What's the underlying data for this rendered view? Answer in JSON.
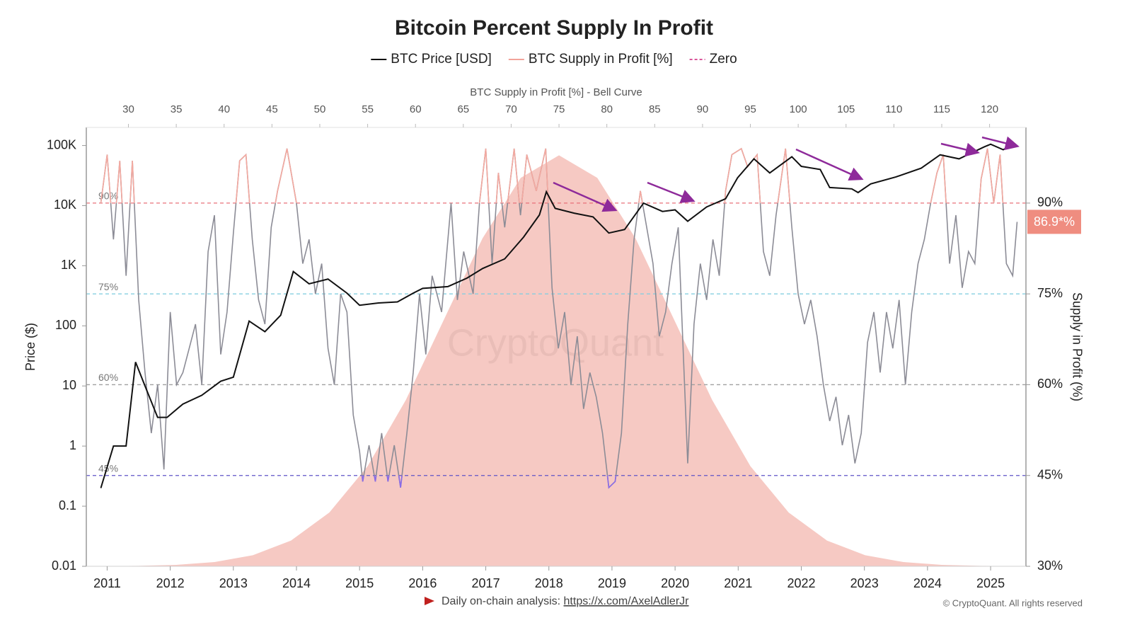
{
  "chart_data": {
    "type": "line",
    "title": "Bitcoin Percent Supply In Profit",
    "y_label": "Price ($)",
    "y2_label": "Supply in Profit (%)",
    "log_scale": true,
    "xlim": [
      2010.67,
      2025.56
    ],
    "xticks": [
      2011,
      2012,
      2013,
      2014,
      2015,
      2016,
      2017,
      2018,
      2019,
      2020,
      2021,
      2022,
      2023,
      2024,
      2025
    ],
    "ylim": [
      0.01,
      200000
    ],
    "yticks": [
      0.01,
      0.1,
      1,
      10,
      100,
      {
        "value": 1000,
        "label": "1K"
      },
      {
        "value": 10000,
        "label": "10K"
      },
      {
        "value": 100000,
        "label": "100K"
      }
    ],
    "y2lim": [
      30,
      102.5
    ],
    "y2ticks": [
      {
        "value": 30,
        "label": "30%"
      },
      {
        "value": 45,
        "label": "45%"
      },
      {
        "value": 60,
        "label": "60%"
      },
      {
        "value": 75,
        "label": "75%"
      },
      {
        "value": 90,
        "label": "90%"
      }
    ],
    "reference_lines": [
      {
        "value": 90,
        "label": "90%",
        "color": "#e8707a",
        "tint": "#f4a9a0",
        "tint_side": "above"
      },
      {
        "value": 75,
        "label": "75%",
        "color": "#86cfe0"
      },
      {
        "value": 60,
        "label": "60%",
        "color": "#a0a0a0"
      },
      {
        "value": 45,
        "label": "45%",
        "color": "#5f54c8",
        "tint": "#8a6be8",
        "tint_side": "below"
      }
    ],
    "bell_curve": {
      "axis_label": "BTC Supply in Profit [%] - Bell Curve",
      "xlim": [
        25.6,
        123.8
      ],
      "xticks": [
        30,
        35,
        40,
        45,
        50,
        55,
        60,
        65,
        70,
        75,
        80,
        85,
        90,
        95,
        100,
        105,
        110,
        115,
        120
      ],
      "color": "#f6c9c3",
      "x": [
        27,
        31,
        35,
        39,
        43,
        47,
        51,
        55,
        59,
        63,
        67,
        71,
        75,
        79,
        83,
        87,
        91,
        95,
        99,
        103,
        107,
        111,
        115,
        119,
        123
      ],
      "values": [
        30.02,
        30.07,
        30.24,
        30.7,
        31.83,
        34.26,
        38.88,
        46.54,
        57.5,
        70.84,
        84.16,
        94.17,
        97.9,
        94.17,
        84.16,
        70.84,
        57.5,
        46.54,
        38.88,
        34.26,
        31.83,
        30.7,
        30.24,
        30.07,
        30.02
      ]
    },
    "series": [
      {
        "name": "BTC Price [USD]",
        "color": "#111111",
        "axis": "y",
        "x": [
          2010.9,
          2011.1,
          2011.3,
          2011.45,
          2011.6,
          2011.8,
          2011.95,
          2012.2,
          2012.5,
          2012.8,
          2013.0,
          2013.25,
          2013.5,
          2013.75,
          2013.95,
          2014.2,
          2014.5,
          2014.8,
          2015.0,
          2015.3,
          2015.6,
          2015.85,
          2016.0,
          2016.4,
          2016.7,
          2016.95,
          2017.3,
          2017.6,
          2017.85,
          2017.96,
          2018.1,
          2018.4,
          2018.7,
          2018.95,
          2019.2,
          2019.5,
          2019.8,
          2020.0,
          2020.2,
          2020.5,
          2020.8,
          2020.99,
          2021.25,
          2021.5,
          2021.85,
          2022.0,
          2022.3,
          2022.45,
          2022.8,
          2022.9,
          2023.1,
          2023.5,
          2023.9,
          2024.2,
          2024.5,
          2024.9,
          2025.0,
          2025.2,
          2025.35
        ],
        "values": [
          0.2,
          1,
          1,
          25,
          10,
          3,
          3,
          5,
          7,
          12,
          14,
          120,
          80,
          150,
          800,
          500,
          600,
          350,
          220,
          240,
          250,
          350,
          420,
          450,
          620,
          900,
          1300,
          3000,
          7000,
          17000,
          9000,
          7500,
          6500,
          3500,
          4000,
          11000,
          8000,
          8500,
          5500,
          9500,
          13000,
          29000,
          60000,
          35000,
          65000,
          45000,
          40000,
          20000,
          19000,
          16500,
          23000,
          30000,
          42000,
          70000,
          60000,
          95000,
          105000,
          85000,
          105000
        ]
      },
      {
        "name": "BTC Supply in Profit [%]",
        "color": "#f2a39a",
        "line_color": "#8c8c96",
        "axis": "y2",
        "badge": {
          "label": "86.9*%",
          "color": "#ef8d80"
        },
        "x": [
          2010.9,
          2011.0,
          2011.1,
          2011.2,
          2011.3,
          2011.4,
          2011.5,
          2011.6,
          2011.7,
          2011.8,
          2011.9,
          2012.0,
          2012.1,
          2012.2,
          2012.3,
          2012.4,
          2012.5,
          2012.6,
          2012.7,
          2012.8,
          2012.9,
          2013.0,
          2013.1,
          2013.2,
          2013.3,
          2013.4,
          2013.5,
          2013.6,
          2013.7,
          2013.85,
          2014.0,
          2014.1,
          2014.2,
          2014.3,
          2014.4,
          2014.5,
          2014.6,
          2014.7,
          2014.8,
          2014.9,
          2015.0,
          2015.05,
          2015.15,
          2015.25,
          2015.35,
          2015.45,
          2015.55,
          2015.65,
          2015.75,
          2015.85,
          2015.95,
          2016.05,
          2016.15,
          2016.3,
          2016.45,
          2016.55,
          2016.65,
          2016.8,
          2016.9,
          2017.0,
          2017.1,
          2017.2,
          2017.3,
          2017.45,
          2017.55,
          2017.65,
          2017.8,
          2017.95,
          2018.05,
          2018.15,
          2018.25,
          2018.35,
          2018.45,
          2018.55,
          2018.65,
          2018.75,
          2018.85,
          2018.95,
          2019.05,
          2019.15,
          2019.25,
          2019.35,
          2019.45,
          2019.55,
          2019.65,
          2019.75,
          2019.85,
          2019.95,
          2020.05,
          2020.15,
          2020.2,
          2020.3,
          2020.4,
          2020.5,
          2020.6,
          2020.7,
          2020.8,
          2020.9,
          2021.05,
          2021.15,
          2021.3,
          2021.4,
          2021.5,
          2021.6,
          2021.75,
          2021.85,
          2021.95,
          2022.05,
          2022.15,
          2022.25,
          2022.35,
          2022.45,
          2022.55,
          2022.65,
          2022.75,
          2022.85,
          2022.95,
          2023.05,
          2023.15,
          2023.25,
          2023.35,
          2023.45,
          2023.55,
          2023.65,
          2023.75,
          2023.85,
          2023.95,
          2024.05,
          2024.15,
          2024.25,
          2024.35,
          2024.45,
          2024.55,
          2024.65,
          2024.75,
          2024.85,
          2024.95,
          2025.05,
          2025.15,
          2025.25,
          2025.35,
          2025.42
        ],
        "values": [
          90,
          98,
          84,
          97,
          78,
          97,
          74,
          62,
          52,
          60,
          46,
          72,
          60,
          62,
          66,
          70,
          60,
          82,
          88,
          65,
          72,
          85,
          97,
          98,
          84,
          74,
          70,
          86,
          92,
          99,
          90,
          80,
          84,
          75,
          80,
          66,
          60,
          75,
          72,
          55,
          49,
          44,
          50,
          44,
          52,
          44,
          50,
          43,
          52,
          62,
          75,
          65,
          78,
          72,
          90,
          74,
          82,
          75,
          90,
          99,
          80,
          95,
          86,
          99,
          88,
          98,
          92,
          99,
          76,
          66,
          72,
          60,
          68,
          56,
          62,
          58,
          52,
          43,
          44,
          52,
          70,
          84,
          92,
          86,
          80,
          68,
          72,
          80,
          86,
          60,
          47,
          70,
          80,
          74,
          84,
          78,
          92,
          98,
          99,
          96,
          98,
          82,
          78,
          88,
          99,
          86,
          75,
          70,
          74,
          68,
          60,
          54,
          58,
          50,
          55,
          47,
          52,
          67,
          72,
          62,
          72,
          66,
          74,
          60,
          72,
          80,
          84,
          90,
          95,
          98,
          80,
          88,
          76,
          82,
          80,
          94,
          99,
          90,
          98,
          80,
          78,
          86.9
        ]
      },
      {
        "name": "Zero",
        "color": "#d9559a",
        "dashed": true
      }
    ],
    "watermark": "CryptoQuant",
    "footer": {
      "text": "Daily on-chain analysis:",
      "link": "https://x.com/AxelAdlerJr"
    },
    "copyright": "© CryptoQuant. All rights reserved"
  }
}
